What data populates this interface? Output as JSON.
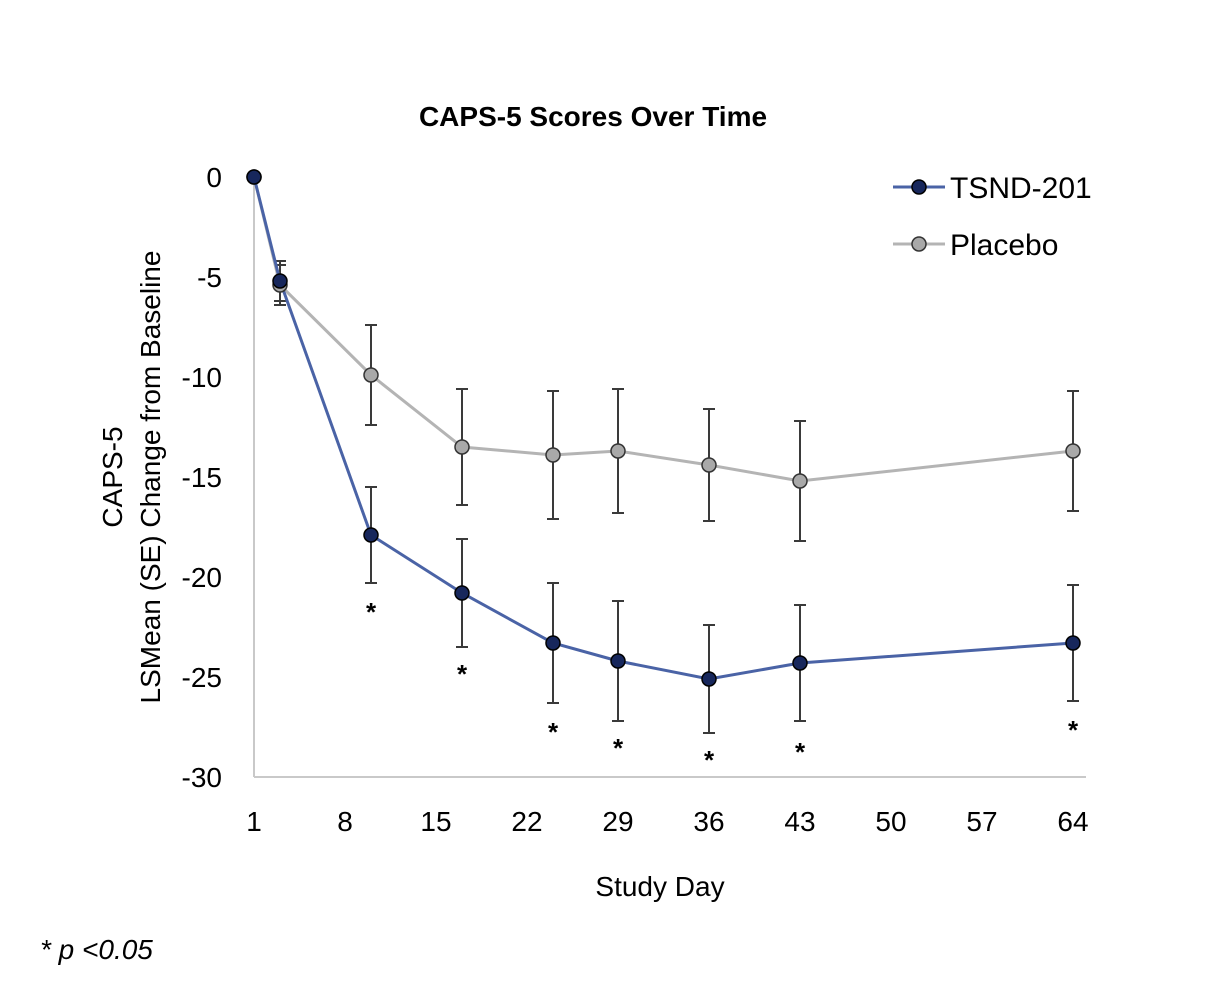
{
  "chart_data": {
    "type": "line",
    "title": "CAPS-5 Scores Over Time",
    "xlabel": "Study Day",
    "ylabel_line1": "CAPS-5",
    "ylabel_line2": "LSMean (SE) Change from Baseline",
    "xlim": [
      1,
      64
    ],
    "ylim": [
      -30,
      0
    ],
    "x_ticks": [
      1,
      8,
      15,
      22,
      29,
      36,
      43,
      50,
      57,
      64
    ],
    "y_ticks": [
      0,
      -5,
      -10,
      -15,
      -20,
      -25,
      -30
    ],
    "legend_position": "top-right",
    "series": [
      {
        "name": "TSND-201",
        "line_color": "#4a63a6",
        "marker_color": "#17275c",
        "x": [
          1,
          3,
          10,
          17,
          24,
          29,
          36,
          43,
          64
        ],
        "y": [
          0,
          -5.2,
          -17.9,
          -20.8,
          -23.3,
          -24.2,
          -25.1,
          -24.3,
          -23.3
        ],
        "se": [
          0,
          1.0,
          2.4,
          2.7,
          3.0,
          3.0,
          2.7,
          2.9,
          2.9
        ]
      },
      {
        "name": "Placebo",
        "line_color": "#b4b4b4",
        "marker_color": "#a9a9a9",
        "x": [
          1,
          3,
          10,
          17,
          24,
          29,
          36,
          43,
          64
        ],
        "y": [
          0,
          -5.4,
          -9.9,
          -13.5,
          -13.9,
          -13.7,
          -14.4,
          -15.2,
          -13.7
        ],
        "se": [
          0,
          1.0,
          2.5,
          2.9,
          3.2,
          3.1,
          2.8,
          3.0,
          3.0
        ]
      }
    ],
    "significance": {
      "symbol": "*",
      "x": [
        10,
        17,
        24,
        29,
        36,
        43,
        64
      ],
      "y": [
        -21.7,
        -24.8,
        -27.7,
        -28.5,
        -29.1,
        -28.7,
        -27.6
      ]
    }
  },
  "footnote": "* p <0.05"
}
